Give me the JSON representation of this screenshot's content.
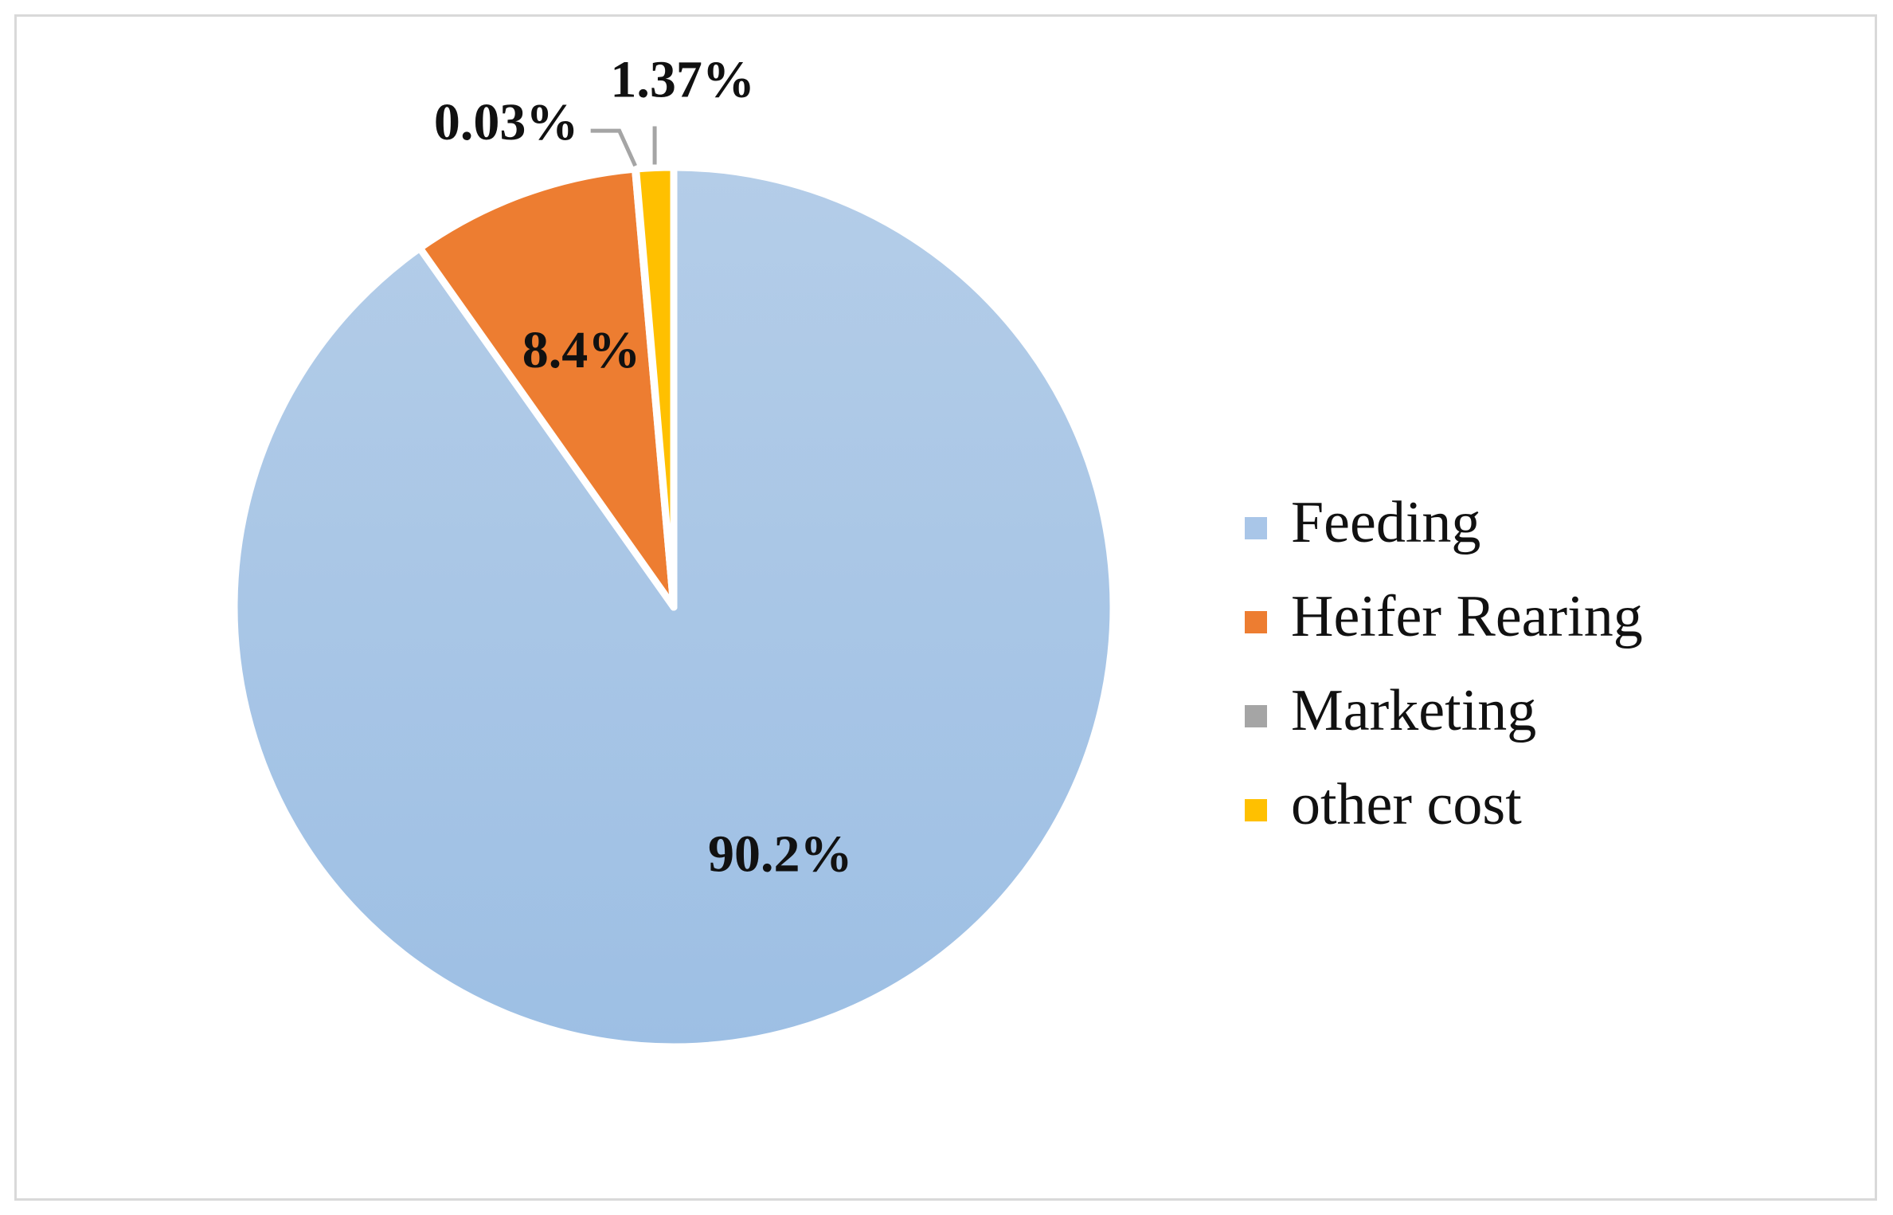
{
  "chart_data": {
    "type": "pie",
    "title": "",
    "slices": [
      {
        "name": "Feeding",
        "value": 90.2,
        "label": "90.2%",
        "color": "#9dbfe4",
        "color_light": "#b4cde8"
      },
      {
        "name": "Heifer Rearing",
        "value": 8.4,
        "label": "8.4%",
        "color": "#ed7d31"
      },
      {
        "name": "Marketing",
        "value": 0.03,
        "label": "0.03%",
        "color": "#a5a5a5"
      },
      {
        "name": "other cost",
        "value": 1.37,
        "label": "1.37%",
        "color": "#ffc000"
      }
    ],
    "legend": {
      "position": "right"
    },
    "leader_line_color": "#a5a5a5"
  }
}
